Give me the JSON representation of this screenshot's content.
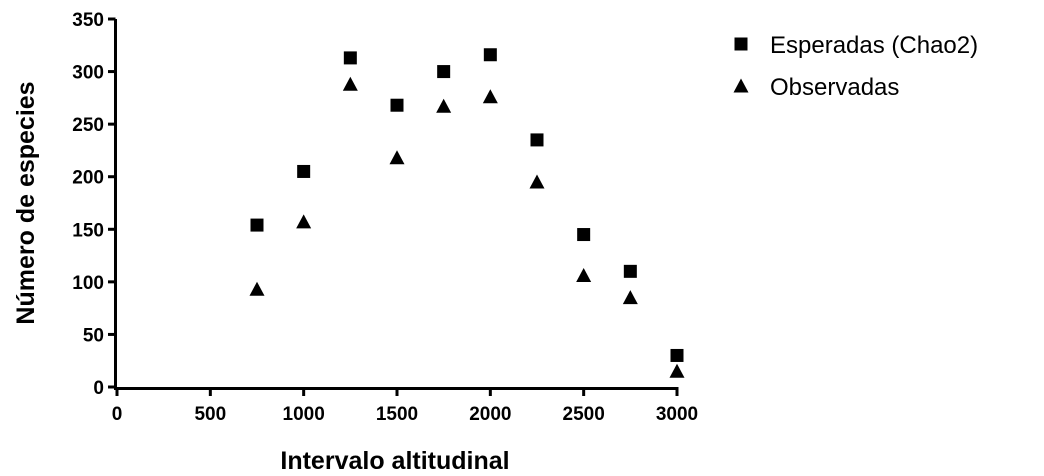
{
  "chart_data": {
    "type": "scatter",
    "title": "",
    "xlabel": "Intervalo altitudinal",
    "ylabel": "Número de especies",
    "xlim": [
      0,
      3000
    ],
    "ylim": [
      0,
      350
    ],
    "x_ticks": [
      0,
      500,
      1000,
      1500,
      2000,
      2500,
      3000
    ],
    "y_ticks": [
      0,
      50,
      100,
      150,
      200,
      250,
      300,
      350
    ],
    "grid": false,
    "legend_position": "top-right",
    "series": [
      {
        "name": "Esperadas (Chao2)",
        "marker": "square",
        "color": "#000000",
        "x": [
          750,
          1000,
          1250,
          1500,
          1750,
          2000,
          2250,
          2500,
          2750,
          3000
        ],
        "y": [
          154,
          205,
          313,
          268,
          300,
          316,
          235,
          145,
          110,
          30
        ]
      },
      {
        "name": "Observadas",
        "marker": "triangle",
        "color": "#000000",
        "x": [
          750,
          1000,
          1250,
          1500,
          1750,
          2000,
          2250,
          2500,
          2750,
          3000
        ],
        "y": [
          93,
          157,
          288,
          218,
          267,
          276,
          195,
          106,
          85,
          15
        ]
      }
    ]
  }
}
